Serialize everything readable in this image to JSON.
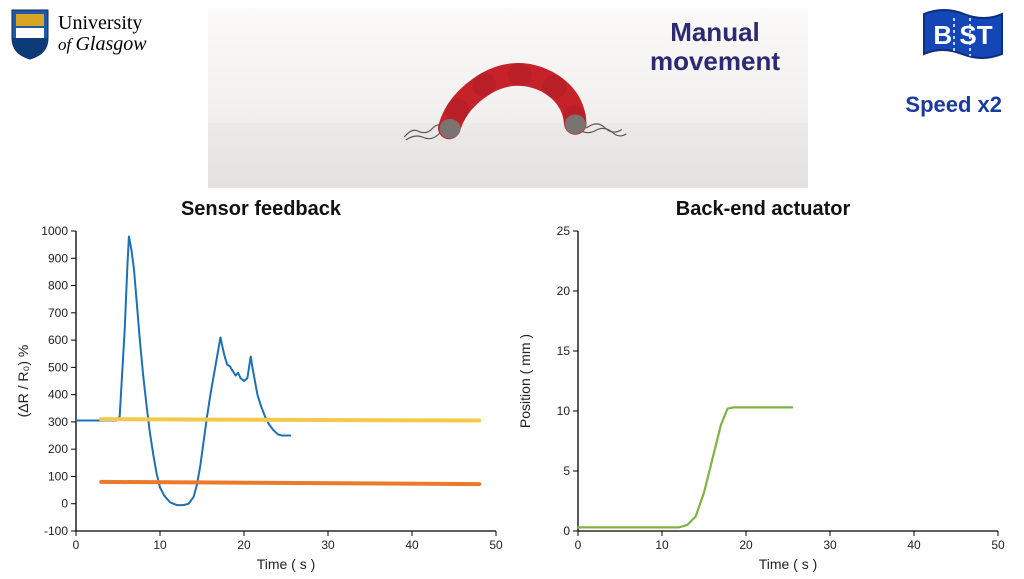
{
  "header": {
    "university_name_l1": "University",
    "university_name_l2_of": "of ",
    "university_name_l2": "Glasgow",
    "shield_colors": {
      "top": "#1f5aa8",
      "bottom": "#0d3b78",
      "accent": "#d9a324"
    },
    "bst_label": "B  ST",
    "bst_flag_fill": "#1446b5",
    "bst_text_fill": "#ffffff",
    "speed_label": "Speed x2",
    "speed_color": "#1a3a9e",
    "photo_title_l1": "Manual",
    "photo_title_l2": "movement",
    "photo_title_color": "#2b2a72",
    "actuator_color": "#c6222a"
  },
  "sensor_chart": {
    "type": "line",
    "title": "Sensor feedback",
    "xlabel": "Time ( s )",
    "ylabel": "(ΔR / R₀) %",
    "xlim": [
      0,
      50
    ],
    "xtick_step": 10,
    "ylim": [
      -100,
      1000
    ],
    "ytick_step": 100,
    "background_color": "#ffffff",
    "axis_color": "#000000",
    "label_fontsize": 14,
    "tick_fontsize": 12,
    "series": [
      {
        "name": "sensor",
        "color": "#1f6fb4",
        "width": 2.0,
        "points": [
          [
            0,
            305
          ],
          [
            4.8,
            305
          ],
          [
            5.2,
            320
          ],
          [
            5.5,
            480
          ],
          [
            5.8,
            640
          ],
          [
            6.1,
            860
          ],
          [
            6.3,
            980
          ],
          [
            6.6,
            930
          ],
          [
            6.9,
            860
          ],
          [
            7.2,
            750
          ],
          [
            7.6,
            600
          ],
          [
            8.0,
            470
          ],
          [
            8.4,
            360
          ],
          [
            8.8,
            260
          ],
          [
            9.2,
            180
          ],
          [
            9.6,
            110
          ],
          [
            10.0,
            60
          ],
          [
            10.5,
            30
          ],
          [
            11.2,
            5
          ],
          [
            12.0,
            -5
          ],
          [
            12.8,
            -5
          ],
          [
            13.4,
            0
          ],
          [
            14.0,
            25
          ],
          [
            14.4,
            70
          ],
          [
            14.8,
            140
          ],
          [
            15.2,
            230
          ],
          [
            15.6,
            320
          ],
          [
            16.0,
            400
          ],
          [
            16.4,
            470
          ],
          [
            16.8,
            540
          ],
          [
            17.2,
            610
          ],
          [
            17.4,
            580
          ],
          [
            17.7,
            540
          ],
          [
            18.0,
            510
          ],
          [
            18.3,
            505
          ],
          [
            18.6,
            490
          ],
          [
            19.0,
            470
          ],
          [
            19.3,
            480
          ],
          [
            19.6,
            460
          ],
          [
            20.0,
            450
          ],
          [
            20.4,
            460
          ],
          [
            20.8,
            540
          ],
          [
            21.0,
            500
          ],
          [
            21.3,
            450
          ],
          [
            21.6,
            400
          ],
          [
            22.0,
            360
          ],
          [
            22.5,
            320
          ],
          [
            23.0,
            290
          ],
          [
            23.5,
            270
          ],
          [
            24.0,
            255
          ],
          [
            24.5,
            250
          ],
          [
            25.0,
            250
          ],
          [
            25.5,
            250
          ]
        ]
      },
      {
        "name": "threshold-high",
        "color": "#f2c94c",
        "width": 4.0,
        "points": [
          [
            3,
            310
          ],
          [
            48,
            305
          ]
        ]
      },
      {
        "name": "threshold-low",
        "color": "#eb7a2d",
        "width": 4.0,
        "points": [
          [
            3,
            80
          ],
          [
            48,
            72
          ]
        ]
      }
    ]
  },
  "actuator_chart": {
    "type": "line",
    "title": "Back-end actuator",
    "xlabel": "Time ( s )",
    "ylabel": "Position ( mm )",
    "xlim": [
      0,
      50
    ],
    "xtick_step": 10,
    "ylim": [
      0,
      25
    ],
    "ytick_step": 5,
    "background_color": "#ffffff",
    "axis_color": "#000000",
    "label_fontsize": 14,
    "tick_fontsize": 12,
    "series": [
      {
        "name": "position",
        "color": "#7cb342",
        "width": 2.2,
        "points": [
          [
            0,
            0.3
          ],
          [
            12,
            0.3
          ],
          [
            13,
            0.5
          ],
          [
            14,
            1.2
          ],
          [
            15,
            3.2
          ],
          [
            16,
            6.0
          ],
          [
            17,
            8.8
          ],
          [
            17.8,
            10.2
          ],
          [
            18.5,
            10.3
          ],
          [
            25.5,
            10.3
          ]
        ]
      }
    ]
  }
}
